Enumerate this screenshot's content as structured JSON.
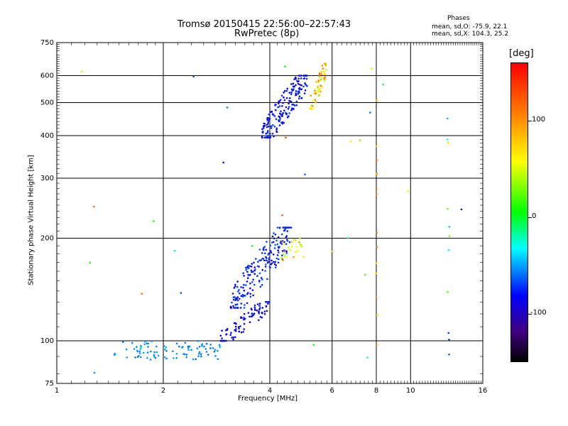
{
  "header": {
    "title_line1": "Tromsø 20150415 22:56:00–22:57:43",
    "title_line2": "RwPretec (8p)",
    "phases_heading": "Phases",
    "phases_line1": "mean, sd,O: -75.9, 22.1",
    "phases_line2": "mean, sd,X: 104.3, 25.2"
  },
  "colorbar": {
    "unit_label": "[deg]",
    "ticks": [
      {
        "value": 100,
        "label": "100"
      },
      {
        "value": 0,
        "label": "0"
      },
      {
        "value": -100,
        "label": "-100"
      }
    ],
    "range": [
      -150,
      160
    ]
  },
  "chart_data": {
    "type": "scatter",
    "title": "Tromsø 20150415 22:56:00–22:57:43",
    "subtitle": "RwPretec (8p)",
    "xlabel": "Frequency [MHz]",
    "ylabel": "Stationary phase Virtual Height [km]",
    "xscale": "log",
    "yscale": "log",
    "xlim": [
      1,
      16
    ],
    "ylim": [
      75,
      750
    ],
    "xticks": [
      {
        "value": 1,
        "label": "1"
      },
      {
        "value": 2,
        "label": "2"
      },
      {
        "value": 4,
        "label": "4"
      },
      {
        "value": 6,
        "label": "6"
      },
      {
        "value": 8,
        "label": "8"
      },
      {
        "value": 10,
        "label": "10"
      },
      {
        "value": 16,
        "label": "16"
      }
    ],
    "yticks": [
      {
        "value": 75,
        "label": "75"
      },
      {
        "value": 100,
        "label": "100"
      },
      {
        "value": 200,
        "label": "200"
      },
      {
        "value": 300,
        "label": "300"
      },
      {
        "value": 400,
        "label": "400"
      },
      {
        "value": 500,
        "label": "500"
      },
      {
        "value": 600,
        "label": "600"
      },
      {
        "value": 750,
        "label": "750"
      }
    ],
    "grid_x": [
      2,
      4,
      6,
      8,
      10
    ],
    "grid_y": [
      100,
      200,
      300,
      400,
      500,
      600
    ],
    "color_by": "phase_deg",
    "clusters": [
      {
        "name": "low-trace",
        "x_range": [
          1.45,
          2.9
        ],
        "y_range": [
          88,
          100
        ],
        "phase_range": [
          -70,
          -40
        ],
        "count": 90
      },
      {
        "name": "ramp",
        "x_range": [
          2.9,
          4.0
        ],
        "y_range": [
          100,
          130
        ],
        "phase_range": [
          -110,
          -90
        ],
        "count": 90
      },
      {
        "name": "E-Es body",
        "x_range": [
          3.1,
          4.6
        ],
        "y_range": [
          125,
          215
        ],
        "phase_range": [
          -110,
          -70
        ],
        "count": 200
      },
      {
        "name": "O-trace upper",
        "x_range": [
          3.8,
          5.1
        ],
        "y_range": [
          395,
          600
        ],
        "phase_range": [
          -110,
          -80
        ],
        "count": 190
      },
      {
        "name": "X-trace upper",
        "x_range": [
          5.2,
          5.8
        ],
        "y_range": [
          480,
          650
        ],
        "phase_range": [
          80,
          130
        ],
        "count": 60
      },
      {
        "name": "X-trace mid",
        "x_range": [
          4.3,
          5.0
        ],
        "y_range": [
          170,
          200
        ],
        "phase_range": [
          80,
          120
        ],
        "count": 25
      },
      {
        "name": "streak 8 MHz",
        "x_range": [
          7.95,
          8.05
        ],
        "y_range": [
          95,
          650
        ],
        "phase_range": [
          100,
          140
        ],
        "count": 14
      },
      {
        "name": "streak 12.8 MHz",
        "x_range": [
          12.7,
          12.9
        ],
        "y_range": [
          85,
          600
        ],
        "phase_range": [
          -110,
          110
        ],
        "count": 12
      },
      {
        "name": "scattered",
        "x_range": [
          1.1,
          14.0
        ],
        "y_range": [
          80,
          650
        ],
        "phase_range": [
          -100,
          140
        ],
        "count": 30
      }
    ]
  }
}
